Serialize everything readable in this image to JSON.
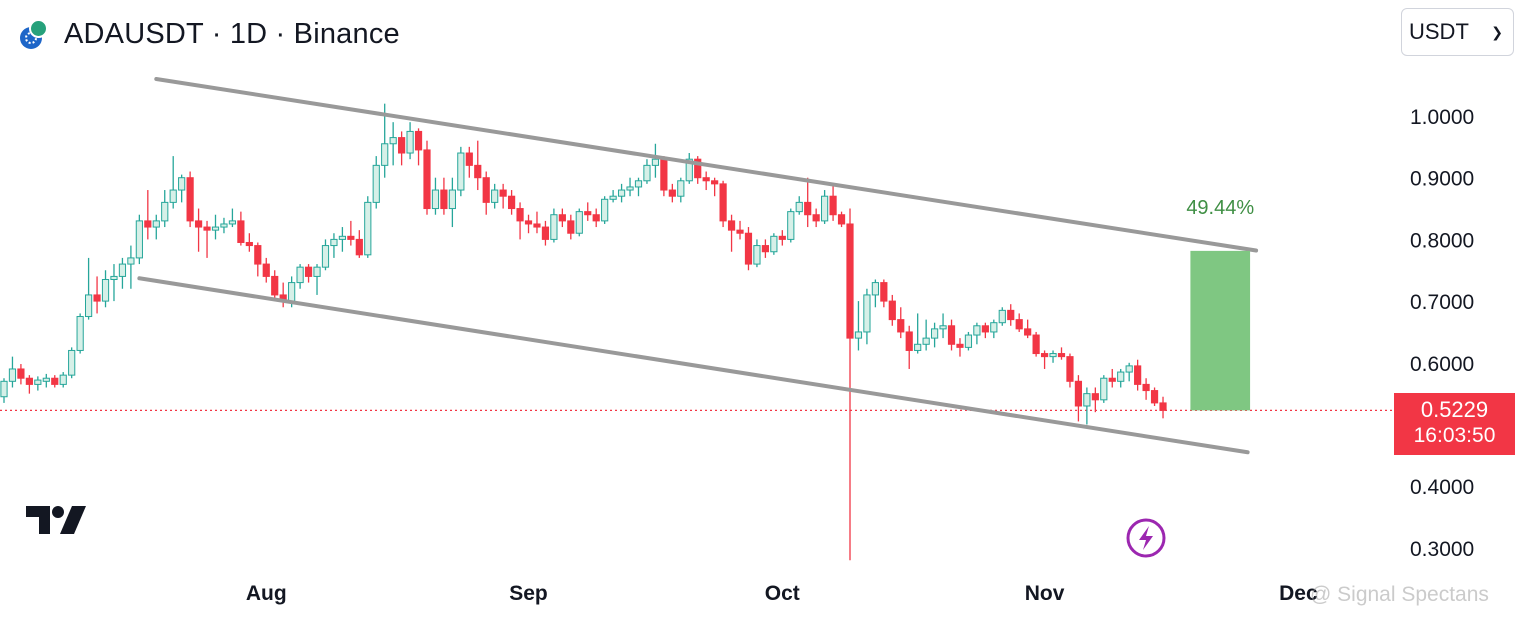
{
  "header": {
    "title": "ADAUSDT · 1D · Binance",
    "coin_icon": "cardano-tether-icon"
  },
  "currency_select": {
    "value": "USDT",
    "icon": "chevron-down-icon"
  },
  "current_price": {
    "price": "0.5229",
    "countdown": "16:03:50",
    "color": "#f23645"
  },
  "watermark": "@ Signal Spectans",
  "colors": {
    "up": "#26a69a",
    "up_fill": "#d6f0e8",
    "down": "#f23645",
    "trendline": "#999999",
    "target_box": "#7fc782",
    "target_text": "#3f8f44"
  },
  "chart_data": {
    "type": "candlestick",
    "symbol": "ADAUSDT",
    "interval": "1D",
    "exchange": "Binance",
    "ylim": [
      0.27,
      1.08
    ],
    "y_ticks": [
      "1.0000",
      "0.9000",
      "0.8000",
      "0.7000",
      "0.6000",
      "0.4000",
      "0.3000"
    ],
    "x_ticks": [
      {
        "label": "Aug",
        "date": "2025-08-01"
      },
      {
        "label": "Sep",
        "date": "2025-09-01"
      },
      {
        "label": "Oct",
        "date": "2025-10-01"
      },
      {
        "label": "Nov",
        "date": "2025-11-01"
      },
      {
        "label": "Dec",
        "date": "2025-12-01"
      }
    ],
    "first_date": "2025-07-01",
    "candles": [
      [
        0.545,
        0.575,
        0.535,
        0.57
      ],
      [
        0.57,
        0.61,
        0.56,
        0.59
      ],
      [
        0.59,
        0.598,
        0.565,
        0.575
      ],
      [
        0.575,
        0.58,
        0.55,
        0.565
      ],
      [
        0.565,
        0.578,
        0.555,
        0.572
      ],
      [
        0.57,
        0.582,
        0.56,
        0.575
      ],
      [
        0.575,
        0.58,
        0.56,
        0.565
      ],
      [
        0.565,
        0.585,
        0.56,
        0.58
      ],
      [
        0.58,
        0.625,
        0.575,
        0.62
      ],
      [
        0.62,
        0.68,
        0.615,
        0.675
      ],
      [
        0.675,
        0.77,
        0.67,
        0.71
      ],
      [
        0.71,
        0.74,
        0.68,
        0.7
      ],
      [
        0.7,
        0.75,
        0.69,
        0.735
      ],
      [
        0.735,
        0.76,
        0.7,
        0.74
      ],
      [
        0.74,
        0.77,
        0.72,
        0.76
      ],
      [
        0.76,
        0.79,
        0.72,
        0.77
      ],
      [
        0.77,
        0.84,
        0.76,
        0.83
      ],
      [
        0.83,
        0.88,
        0.8,
        0.82
      ],
      [
        0.82,
        0.84,
        0.8,
        0.83
      ],
      [
        0.83,
        0.88,
        0.82,
        0.86
      ],
      [
        0.86,
        0.935,
        0.85,
        0.88
      ],
      [
        0.88,
        0.905,
        0.86,
        0.9
      ],
      [
        0.9,
        0.91,
        0.82,
        0.83
      ],
      [
        0.83,
        0.85,
        0.78,
        0.82
      ],
      [
        0.82,
        0.83,
        0.77,
        0.815
      ],
      [
        0.815,
        0.84,
        0.8,
        0.82
      ],
      [
        0.82,
        0.835,
        0.81,
        0.825
      ],
      [
        0.825,
        0.85,
        0.82,
        0.83
      ],
      [
        0.83,
        0.845,
        0.79,
        0.795
      ],
      [
        0.795,
        0.81,
        0.78,
        0.79
      ],
      [
        0.79,
        0.795,
        0.74,
        0.76
      ],
      [
        0.76,
        0.77,
        0.73,
        0.74
      ],
      [
        0.74,
        0.75,
        0.7,
        0.71
      ],
      [
        0.71,
        0.73,
        0.69,
        0.7
      ],
      [
        0.7,
        0.74,
        0.69,
        0.73
      ],
      [
        0.73,
        0.76,
        0.72,
        0.755
      ],
      [
        0.755,
        0.76,
        0.73,
        0.74
      ],
      [
        0.74,
        0.76,
        0.71,
        0.755
      ],
      [
        0.755,
        0.8,
        0.75,
        0.79
      ],
      [
        0.79,
        0.81,
        0.77,
        0.8
      ],
      [
        0.8,
        0.82,
        0.78,
        0.805
      ],
      [
        0.805,
        0.83,
        0.79,
        0.8
      ],
      [
        0.8,
        0.815,
        0.77,
        0.775
      ],
      [
        0.775,
        0.87,
        0.77,
        0.86
      ],
      [
        0.86,
        0.935,
        0.85,
        0.92
      ],
      [
        0.92,
        1.02,
        0.9,
        0.955
      ],
      [
        0.955,
        0.99,
        0.92,
        0.965
      ],
      [
        0.965,
        0.975,
        0.92,
        0.94
      ],
      [
        0.94,
        0.99,
        0.93,
        0.975
      ],
      [
        0.975,
        0.98,
        0.92,
        0.945
      ],
      [
        0.945,
        0.96,
        0.84,
        0.85
      ],
      [
        0.85,
        0.9,
        0.84,
        0.88
      ],
      [
        0.88,
        0.9,
        0.84,
        0.85
      ],
      [
        0.85,
        0.9,
        0.82,
        0.88
      ],
      [
        0.88,
        0.95,
        0.87,
        0.94
      ],
      [
        0.94,
        0.95,
        0.9,
        0.92
      ],
      [
        0.92,
        0.96,
        0.88,
        0.9
      ],
      [
        0.9,
        0.91,
        0.84,
        0.86
      ],
      [
        0.86,
        0.89,
        0.85,
        0.88
      ],
      [
        0.88,
        0.89,
        0.85,
        0.87
      ],
      [
        0.87,
        0.88,
        0.84,
        0.85
      ],
      [
        0.85,
        0.86,
        0.8,
        0.83
      ],
      [
        0.83,
        0.84,
        0.81,
        0.825
      ],
      [
        0.825,
        0.845,
        0.81,
        0.82
      ],
      [
        0.82,
        0.83,
        0.79,
        0.8
      ],
      [
        0.8,
        0.85,
        0.795,
        0.84
      ],
      [
        0.84,
        0.85,
        0.82,
        0.83
      ],
      [
        0.83,
        0.84,
        0.8,
        0.81
      ],
      [
        0.81,
        0.85,
        0.805,
        0.845
      ],
      [
        0.845,
        0.86,
        0.83,
        0.84
      ],
      [
        0.84,
        0.85,
        0.82,
        0.83
      ],
      [
        0.83,
        0.87,
        0.825,
        0.865
      ],
      [
        0.865,
        0.88,
        0.86,
        0.87
      ],
      [
        0.87,
        0.89,
        0.86,
        0.88
      ],
      [
        0.88,
        0.9,
        0.87,
        0.885
      ],
      [
        0.885,
        0.9,
        0.87,
        0.895
      ],
      [
        0.895,
        0.93,
        0.89,
        0.92
      ],
      [
        0.92,
        0.955,
        0.9,
        0.93
      ],
      [
        0.93,
        0.935,
        0.87,
        0.88
      ],
      [
        0.88,
        0.89,
        0.86,
        0.87
      ],
      [
        0.87,
        0.9,
        0.86,
        0.895
      ],
      [
        0.895,
        0.94,
        0.89,
        0.93
      ],
      [
        0.93,
        0.935,
        0.89,
        0.9
      ],
      [
        0.9,
        0.91,
        0.88,
        0.895
      ],
      [
        0.895,
        0.9,
        0.87,
        0.89
      ],
      [
        0.89,
        0.895,
        0.82,
        0.83
      ],
      [
        0.83,
        0.84,
        0.78,
        0.815
      ],
      [
        0.815,
        0.83,
        0.8,
        0.81
      ],
      [
        0.81,
        0.82,
        0.75,
        0.76
      ],
      [
        0.76,
        0.8,
        0.755,
        0.79
      ],
      [
        0.79,
        0.8,
        0.77,
        0.78
      ],
      [
        0.78,
        0.81,
        0.775,
        0.805
      ],
      [
        0.805,
        0.815,
        0.79,
        0.8
      ],
      [
        0.8,
        0.85,
        0.795,
        0.845
      ],
      [
        0.845,
        0.87,
        0.84,
        0.86
      ],
      [
        0.86,
        0.9,
        0.82,
        0.84
      ],
      [
        0.84,
        0.85,
        0.82,
        0.83
      ],
      [
        0.83,
        0.88,
        0.825,
        0.87
      ],
      [
        0.87,
        0.89,
        0.83,
        0.84
      ],
      [
        0.84,
        0.845,
        0.82,
        0.825
      ],
      [
        0.825,
        0.85,
        0.28,
        0.64
      ],
      [
        0.64,
        0.7,
        0.62,
        0.65
      ],
      [
        0.65,
        0.72,
        0.63,
        0.71
      ],
      [
        0.71,
        0.735,
        0.69,
        0.73
      ],
      [
        0.73,
        0.735,
        0.69,
        0.7
      ],
      [
        0.7,
        0.71,
        0.66,
        0.67
      ],
      [
        0.67,
        0.69,
        0.64,
        0.65
      ],
      [
        0.65,
        0.66,
        0.59,
        0.62
      ],
      [
        0.62,
        0.68,
        0.615,
        0.63
      ],
      [
        0.63,
        0.67,
        0.62,
        0.64
      ],
      [
        0.64,
        0.665,
        0.625,
        0.655
      ],
      [
        0.655,
        0.68,
        0.64,
        0.66
      ],
      [
        0.66,
        0.67,
        0.62,
        0.63
      ],
      [
        0.63,
        0.64,
        0.61,
        0.625
      ],
      [
        0.625,
        0.65,
        0.62,
        0.645
      ],
      [
        0.645,
        0.665,
        0.63,
        0.66
      ],
      [
        0.66,
        0.665,
        0.64,
        0.65
      ],
      [
        0.65,
        0.67,
        0.64,
        0.665
      ],
      [
        0.665,
        0.69,
        0.66,
        0.685
      ],
      [
        0.685,
        0.695,
        0.66,
        0.67
      ],
      [
        0.67,
        0.68,
        0.65,
        0.655
      ],
      [
        0.655,
        0.67,
        0.64,
        0.645
      ],
      [
        0.645,
        0.65,
        0.61,
        0.615
      ],
      [
        0.615,
        0.62,
        0.59,
        0.61
      ],
      [
        0.61,
        0.62,
        0.6,
        0.615
      ],
      [
        0.615,
        0.625,
        0.605,
        0.61
      ],
      [
        0.61,
        0.615,
        0.56,
        0.57
      ],
      [
        0.57,
        0.58,
        0.505,
        0.53
      ],
      [
        0.53,
        0.56,
        0.5,
        0.55
      ],
      [
        0.55,
        0.56,
        0.52,
        0.54
      ],
      [
        0.54,
        0.58,
        0.535,
        0.575
      ],
      [
        0.575,
        0.59,
        0.56,
        0.57
      ],
      [
        0.57,
        0.59,
        0.56,
        0.585
      ],
      [
        0.585,
        0.6,
        0.57,
        0.595
      ],
      [
        0.595,
        0.605,
        0.555,
        0.565
      ],
      [
        0.565,
        0.575,
        0.54,
        0.555
      ],
      [
        0.555,
        0.56,
        0.53,
        0.535
      ],
      [
        0.535,
        0.545,
        0.51,
        0.5229
      ]
    ],
    "trendlines": [
      {
        "name": "upper channel",
        "start": {
          "date": "2025-07-19",
          "price": 1.06
        },
        "end": {
          "date": "2025-11-26",
          "price": 0.782
        }
      },
      {
        "name": "lower channel",
        "start": {
          "date": "2025-07-17",
          "price": 0.737
        },
        "end": {
          "date": "2025-11-25",
          "price": 0.455
        }
      }
    ],
    "target_box": {
      "label": "49.44%",
      "from_date": "2025-11-18",
      "to_date": "2025-11-26",
      "bottom_price": 0.5229,
      "top_price": 0.7814
    },
    "last_price_line": 0.5229
  }
}
